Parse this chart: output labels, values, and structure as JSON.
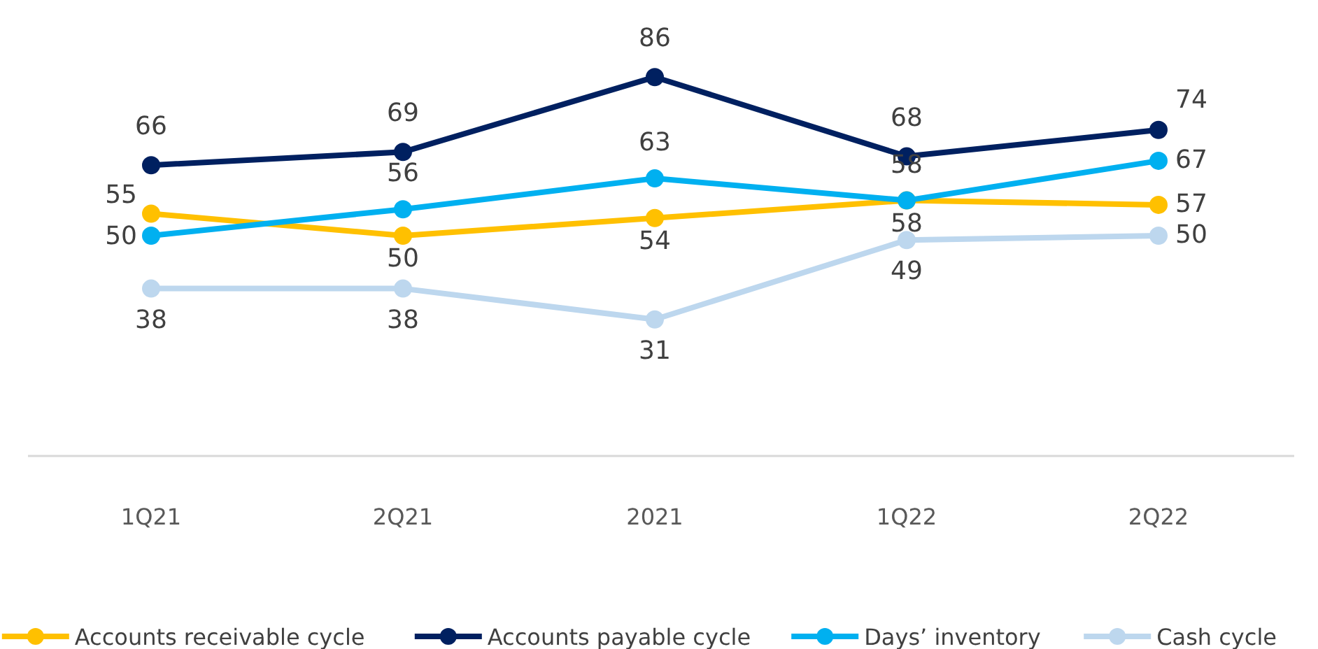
{
  "chart_data": {
    "type": "line",
    "categories": [
      "1Q21",
      "2Q21",
      "2021",
      "1Q22",
      "2Q22"
    ],
    "tick_labels": "x",
    "data_labels": true,
    "marker": "circle",
    "line_style": "solid",
    "legend": "bottom",
    "series": [
      {
        "name": "Accounts receivable cycle",
        "color": "#ffc000",
        "values": [
          55,
          50,
          54,
          58,
          57
        ]
      },
      {
        "name": "Accounts payable cycle",
        "color": "#002060",
        "values": [
          66,
          69,
          86,
          68,
          74
        ]
      },
      {
        "name": "Days’ inventory",
        "color": "#00b0f0",
        "values": [
          50,
          56,
          63,
          58,
          67
        ]
      },
      {
        "name": "Cash cycle",
        "color": "#bdd7ee",
        "values": [
          38,
          38,
          31,
          49,
          50
        ]
      }
    ]
  }
}
